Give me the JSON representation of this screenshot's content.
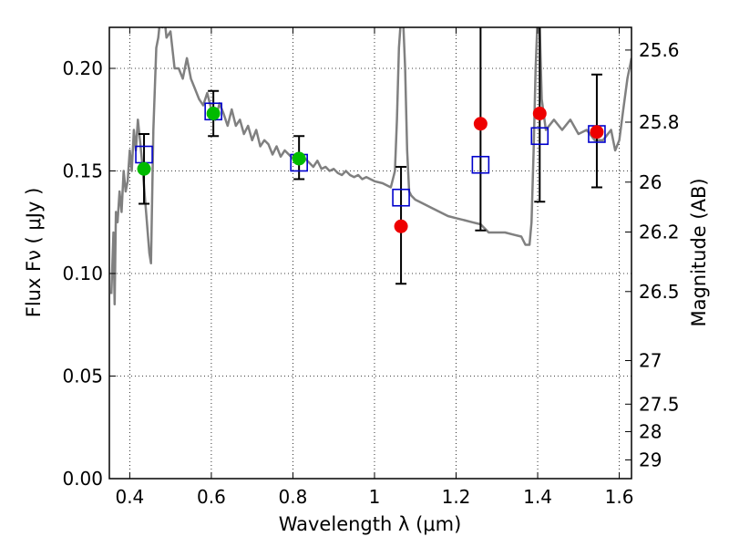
{
  "chart_data": {
    "type": "scatter",
    "xlabel": "Wavelength  λ (μm)",
    "ylabel": "Flux  Fν  ( μJy )",
    "ylabel_right": "Magnitude (AB)",
    "xlim": [
      0.35,
      1.63
    ],
    "ylim": [
      0.0,
      0.22
    ],
    "x_ticks": [
      0.4,
      0.6,
      0.8,
      1.0,
      1.2,
      1.4,
      1.6
    ],
    "x_tick_labels": [
      "0.4",
      "0.6",
      "0.8",
      "1",
      "1.2",
      "1.4",
      "1.6"
    ],
    "y_ticks": [
      0.0,
      0.05,
      0.1,
      0.15,
      0.2
    ],
    "y_tick_labels": [
      "0.00",
      "0.05",
      "0.10",
      "0.15",
      "0.20"
    ],
    "right_ticks": [
      {
        "mag": 25.6,
        "label": "25.6"
      },
      {
        "mag": 25.8,
        "label": "25.8"
      },
      {
        "mag": 26.0,
        "label": "26"
      },
      {
        "mag": 26.2,
        "label": "26.2"
      },
      {
        "mag": 26.5,
        "label": "26.5"
      },
      {
        "mag": 27.0,
        "label": "27"
      },
      {
        "mag": 27.5,
        "label": "27.5"
      },
      {
        "mag": 28.0,
        "label": "28"
      },
      {
        "mag": 29.0,
        "label": "29"
      }
    ],
    "grid": true,
    "colors": {
      "sed": "#808080",
      "model": "#0000cc",
      "green": "#00bb00",
      "red": "#ee0000",
      "errorbar": "#000000"
    },
    "sed_curve": [
      [
        0.355,
        0.09
      ],
      [
        0.36,
        0.12
      ],
      [
        0.363,
        0.085
      ],
      [
        0.366,
        0.13
      ],
      [
        0.37,
        0.125
      ],
      [
        0.375,
        0.14
      ],
      [
        0.38,
        0.13
      ],
      [
        0.385,
        0.15
      ],
      [
        0.39,
        0.14
      ],
      [
        0.395,
        0.145
      ],
      [
        0.4,
        0.16
      ],
      [
        0.405,
        0.15
      ],
      [
        0.41,
        0.17
      ],
      [
        0.415,
        0.16
      ],
      [
        0.42,
        0.175
      ],
      [
        0.425,
        0.165
      ],
      [
        0.43,
        0.155
      ],
      [
        0.44,
        0.13
      ],
      [
        0.448,
        0.11
      ],
      [
        0.452,
        0.105
      ],
      [
        0.458,
        0.17
      ],
      [
        0.465,
        0.21
      ],
      [
        0.47,
        0.215
      ],
      [
        0.475,
        0.225
      ],
      [
        0.48,
        0.22
      ],
      [
        0.485,
        0.225
      ],
      [
        0.49,
        0.215
      ],
      [
        0.5,
        0.218
      ],
      [
        0.51,
        0.2
      ],
      [
        0.52,
        0.2
      ],
      [
        0.53,
        0.195
      ],
      [
        0.54,
        0.205
      ],
      [
        0.55,
        0.195
      ],
      [
        0.56,
        0.19
      ],
      [
        0.57,
        0.185
      ],
      [
        0.58,
        0.182
      ],
      [
        0.59,
        0.188
      ],
      [
        0.6,
        0.18
      ],
      [
        0.61,
        0.175
      ],
      [
        0.62,
        0.183
      ],
      [
        0.63,
        0.178
      ],
      [
        0.64,
        0.172
      ],
      [
        0.65,
        0.18
      ],
      [
        0.66,
        0.172
      ],
      [
        0.67,
        0.175
      ],
      [
        0.68,
        0.168
      ],
      [
        0.69,
        0.172
      ],
      [
        0.7,
        0.165
      ],
      [
        0.71,
        0.17
      ],
      [
        0.72,
        0.162
      ],
      [
        0.73,
        0.165
      ],
      [
        0.74,
        0.163
      ],
      [
        0.75,
        0.158
      ],
      [
        0.76,
        0.162
      ],
      [
        0.77,
        0.157
      ],
      [
        0.78,
        0.16
      ],
      [
        0.79,
        0.158
      ],
      [
        0.8,
        0.156
      ],
      [
        0.81,
        0.158
      ],
      [
        0.82,
        0.155
      ],
      [
        0.83,
        0.156
      ],
      [
        0.84,
        0.154
      ],
      [
        0.85,
        0.152
      ],
      [
        0.86,
        0.155
      ],
      [
        0.87,
        0.151
      ],
      [
        0.88,
        0.152
      ],
      [
        0.89,
        0.15
      ],
      [
        0.9,
        0.151
      ],
      [
        0.91,
        0.149
      ],
      [
        0.92,
        0.148
      ],
      [
        0.93,
        0.15
      ],
      [
        0.94,
        0.148
      ],
      [
        0.95,
        0.147
      ],
      [
        0.96,
        0.148
      ],
      [
        0.97,
        0.146
      ],
      [
        0.98,
        0.147
      ],
      [
        1.0,
        0.145
      ],
      [
        1.02,
        0.144
      ],
      [
        1.04,
        0.142
      ],
      [
        1.05,
        0.15
      ],
      [
        1.055,
        0.175
      ],
      [
        1.06,
        0.21
      ],
      [
        1.065,
        0.225
      ],
      [
        1.07,
        0.225
      ],
      [
        1.075,
        0.2
      ],
      [
        1.08,
        0.16
      ],
      [
        1.085,
        0.14
      ],
      [
        1.09,
        0.138
      ],
      [
        1.1,
        0.136
      ],
      [
        1.12,
        0.134
      ],
      [
        1.14,
        0.132
      ],
      [
        1.16,
        0.13
      ],
      [
        1.18,
        0.128
      ],
      [
        1.2,
        0.127
      ],
      [
        1.22,
        0.126
      ],
      [
        1.24,
        0.125
      ],
      [
        1.26,
        0.124
      ],
      [
        1.28,
        0.12
      ],
      [
        1.3,
        0.12
      ],
      [
        1.32,
        0.12
      ],
      [
        1.34,
        0.119
      ],
      [
        1.36,
        0.118
      ],
      [
        1.37,
        0.114
      ],
      [
        1.38,
        0.114
      ],
      [
        1.385,
        0.125
      ],
      [
        1.39,
        0.16
      ],
      [
        1.395,
        0.2
      ],
      [
        1.4,
        0.225
      ],
      [
        1.405,
        0.22
      ],
      [
        1.41,
        0.185
      ],
      [
        1.42,
        0.17
      ],
      [
        1.44,
        0.175
      ],
      [
        1.46,
        0.17
      ],
      [
        1.48,
        0.175
      ],
      [
        1.5,
        0.168
      ],
      [
        1.52,
        0.17
      ],
      [
        1.54,
        0.165
      ],
      [
        1.56,
        0.165
      ],
      [
        1.58,
        0.17
      ],
      [
        1.59,
        0.16
      ],
      [
        1.6,
        0.165
      ],
      [
        1.61,
        0.18
      ],
      [
        1.62,
        0.195
      ],
      [
        1.625,
        0.2
      ],
      [
        1.63,
        0.205
      ]
    ],
    "model_points": [
      {
        "x": 0.435,
        "y": 0.158
      },
      {
        "x": 0.605,
        "y": 0.179
      },
      {
        "x": 0.815,
        "y": 0.154
      },
      {
        "x": 1.065,
        "y": 0.137
      },
      {
        "x": 1.26,
        "y": 0.153
      },
      {
        "x": 1.405,
        "y": 0.167
      },
      {
        "x": 1.545,
        "y": 0.168
      }
    ],
    "observed_points": [
      {
        "x": 0.435,
        "y": 0.151,
        "err_low": 0.134,
        "err_high": 0.168,
        "color": "green"
      },
      {
        "x": 0.605,
        "y": 0.178,
        "err_low": 0.167,
        "err_high": 0.189,
        "color": "green"
      },
      {
        "x": 0.815,
        "y": 0.156,
        "err_low": 0.146,
        "err_high": 0.167,
        "color": "green"
      },
      {
        "x": 1.065,
        "y": 0.123,
        "err_low": 0.095,
        "err_high": 0.152,
        "color": "red"
      },
      {
        "x": 1.26,
        "y": 0.173,
        "err_low": 0.121,
        "err_high": 0.225,
        "color": "red"
      },
      {
        "x": 1.405,
        "y": 0.178,
        "err_low": 0.135,
        "err_high": 0.225,
        "color": "red"
      },
      {
        "x": 1.545,
        "y": 0.169,
        "err_low": 0.142,
        "err_high": 0.197,
        "color": "red"
      }
    ]
  }
}
